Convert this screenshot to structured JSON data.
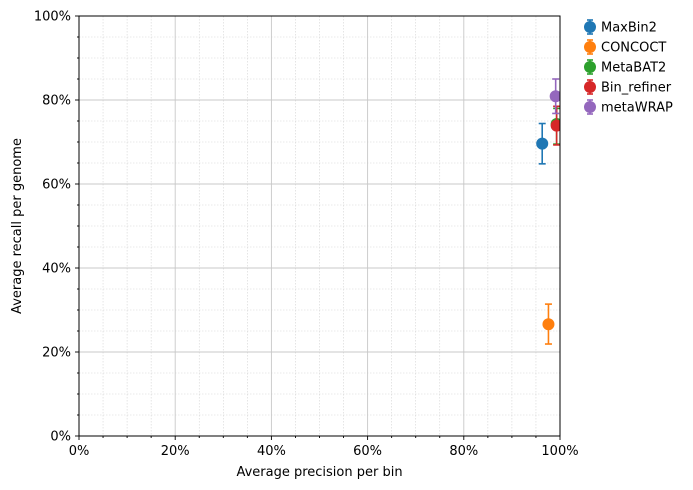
{
  "chart_data": {
    "type": "scatter",
    "xlabel": "Average precision per bin",
    "ylabel": "Average recall per genome",
    "xlim": [
      0,
      100
    ],
    "ylim": [
      0,
      100
    ],
    "x_ticks": [
      "0%",
      "20%",
      "40%",
      "60%",
      "80%",
      "100%"
    ],
    "y_ticks": [
      "0%",
      "20%",
      "40%",
      "60%",
      "80%",
      "100%"
    ],
    "grid": true,
    "minor_grid": true,
    "legend_position": "outside-top-right",
    "series": [
      {
        "name": "MaxBin2",
        "color": "#1f77b4",
        "x": 96.3,
        "y": 69.6,
        "y_err_low": 64.8,
        "y_err_high": 74.4
      },
      {
        "name": "CONCOCT",
        "color": "#ff7f0e",
        "x": 97.6,
        "y": 26.6,
        "y_err_low": 21.9,
        "y_err_high": 31.4
      },
      {
        "name": "MetaBAT2",
        "color": "#2ca02c",
        "x": 99.3,
        "y": 74.3,
        "y_err_low": 69.5,
        "y_err_high": 78.0
      },
      {
        "name": "Bin_refiner",
        "color": "#d62728",
        "x": 99.3,
        "y": 73.9,
        "y_err_low": 69.3,
        "y_err_high": 78.5
      },
      {
        "name": "metaWRAP",
        "color": "#9467bd",
        "x": 99.1,
        "y": 80.9,
        "y_err_low": 76.8,
        "y_err_high": 85.0
      }
    ]
  }
}
